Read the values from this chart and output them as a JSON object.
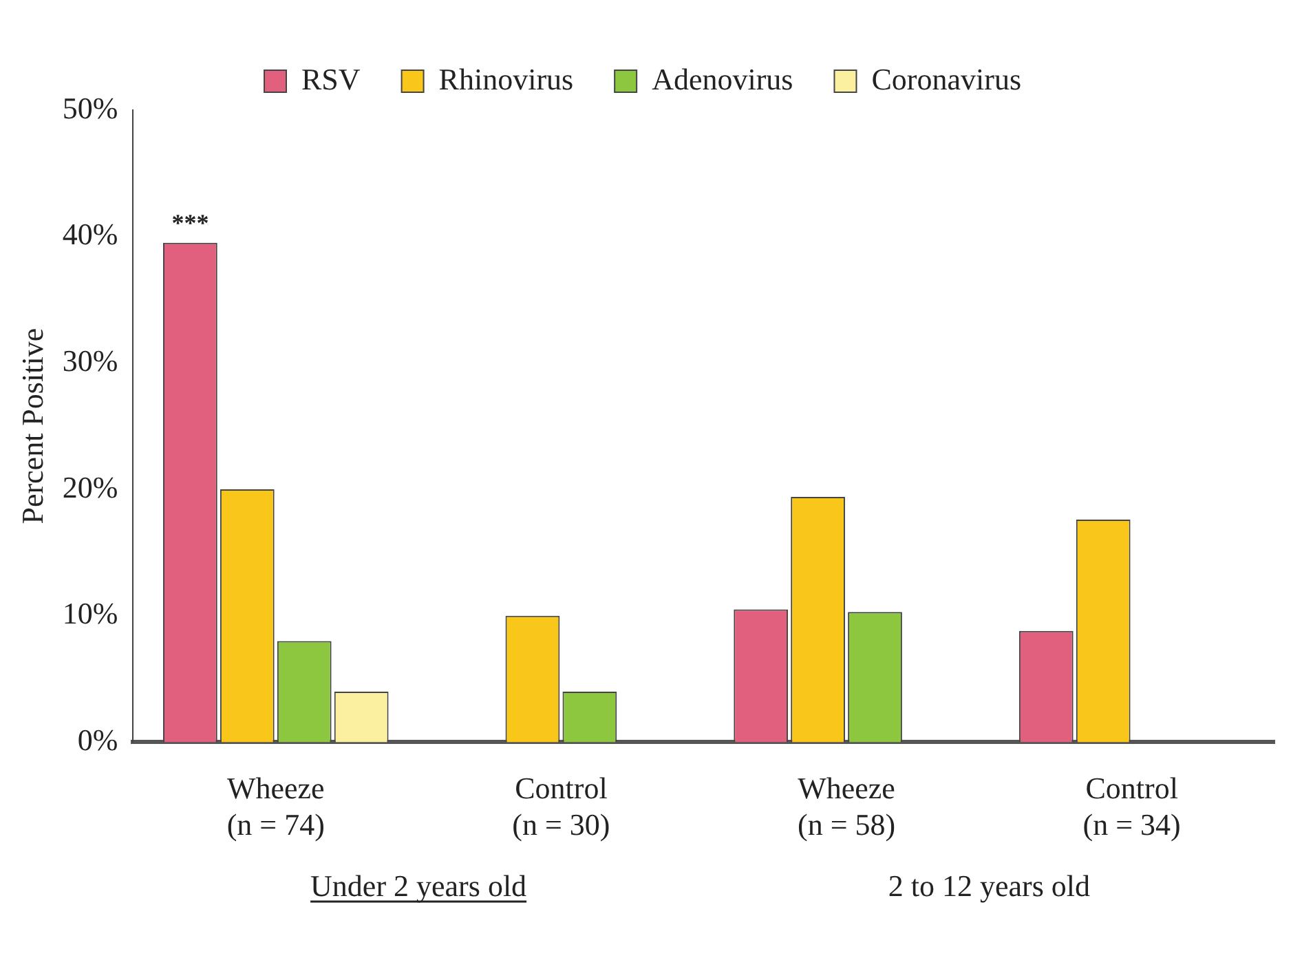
{
  "chart_data": {
    "type": "bar",
    "ylabel": "Percent Positive",
    "categories": [
      "Wheeze\n(n = 74)",
      "Control\n(n = 30)",
      "Wheeze\n(n = 58)",
      "Control\n(n = 34)"
    ],
    "series": [
      {
        "name": "RSV",
        "color": "#e0607e",
        "values": [
          39.5,
          0,
          10.5,
          8.8
        ]
      },
      {
        "name": "Rhinovirus",
        "color": "#f9c61a",
        "values": [
          20,
          10,
          19.4,
          17.6
        ]
      },
      {
        "name": "Adenovirus",
        "color": "#8dc63f",
        "values": [
          8,
          4,
          10.3,
          0
        ]
      },
      {
        "name": "Coronavirus",
        "color": "#fbf0a0",
        "values": [
          4,
          0,
          0,
          0
        ]
      }
    ],
    "ylim": [
      0,
      50
    ],
    "yticks": [
      {
        "value": 0,
        "label": "0%"
      },
      {
        "value": 10,
        "label": "10%"
      },
      {
        "value": 20,
        "label": "20%"
      },
      {
        "value": 30,
        "label": "30%"
      },
      {
        "value": 40,
        "label": "40%"
      },
      {
        "value": 50,
        "label": "50%"
      }
    ],
    "annotations": [
      "***",
      "Under 2 years old",
      "2 to 12 years old"
    ],
    "grid": false,
    "legend": "top"
  }
}
